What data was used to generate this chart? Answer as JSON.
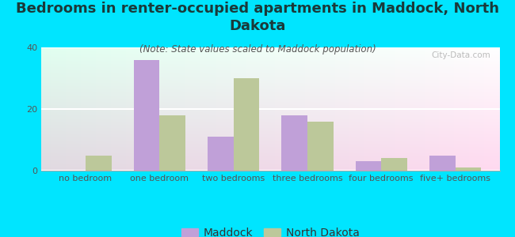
{
  "title": "Bedrooms in renter-occupied apartments in Maddock, North\nDakota",
  "subtitle": "(Note: State values scaled to Maddock population)",
  "categories": [
    "no bedroom",
    "one bedroom",
    "two bedrooms",
    "three bedrooms",
    "four bedrooms",
    "five+ bedrooms"
  ],
  "maddock_values": [
    0,
    36,
    11,
    18,
    3,
    5
  ],
  "nd_values": [
    5,
    18,
    30,
    16,
    4,
    1
  ],
  "maddock_color": "#c0a0d8",
  "nd_color": "#bcc89a",
  "background_color": "#00e5ff",
  "ylim": [
    0,
    40
  ],
  "yticks": [
    0,
    20,
    40
  ],
  "bar_width": 0.35,
  "title_fontsize": 13,
  "subtitle_fontsize": 8.5,
  "tick_fontsize": 8,
  "legend_fontsize": 10,
  "watermark": "City-Data.com",
  "title_color": "#1a3a3a"
}
